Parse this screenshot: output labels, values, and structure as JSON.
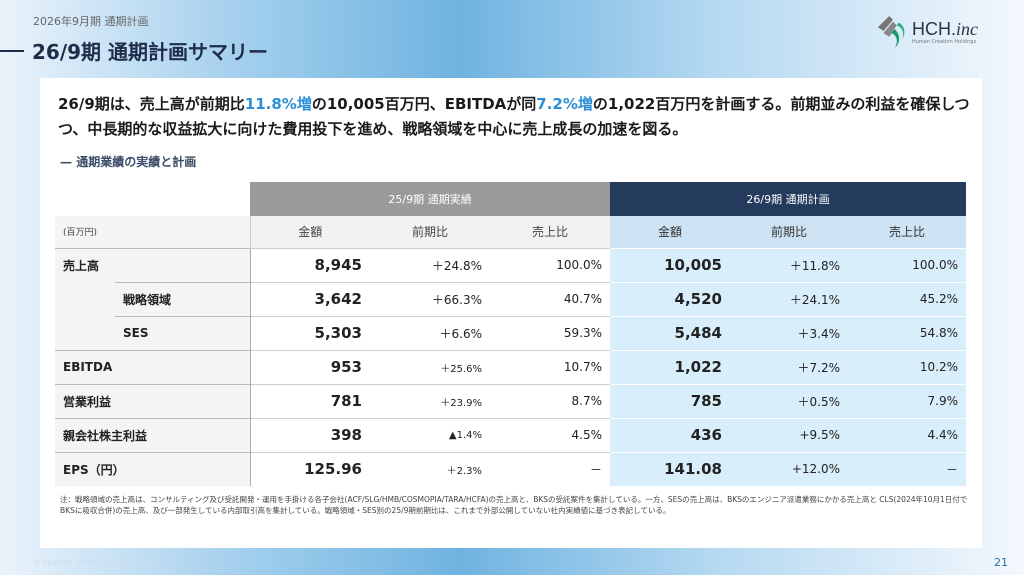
{
  "header": {
    "subtitle": "2026年9月期 通期計画",
    "title": "26/9期 通期計画サマリー",
    "logo_text": "HCH.",
    "logo_suffix": "inc",
    "logo_sub": "Human Creation Holdings"
  },
  "lead": {
    "p1": "26/9期は、売上高が前期比",
    "h1": "11.8%増",
    "p2": "の10,005百万円、EBITDAが同",
    "h2": "7.2%増",
    "p3": "の1,022百万円を計画する。前期並みの利益を確保しつつ、中長期的な収益拡大に向けた費用投下を進め、戦略領域を中心に売上成長の加速を図る。"
  },
  "section_title": "通期業績の実績と計画",
  "table": {
    "unit": "(百万円)",
    "group1": "25/9期 通期実績",
    "group2": "26/9期 通期計画",
    "cols": [
      "金額",
      "前期比",
      "売上比",
      "金額",
      "前期比",
      "売上比"
    ],
    "rows": [
      {
        "label": "売上高",
        "indent": false,
        "v": [
          "8,945",
          "＋24.8%",
          "100.0%",
          "10,005",
          "＋11.8%",
          "100.0%"
        ]
      },
      {
        "label": "戦略領域",
        "indent": true,
        "v": [
          "3,642",
          "＋66.3%",
          "40.7%",
          "4,520",
          "＋24.1%",
          "45.2%"
        ]
      },
      {
        "label": "SES",
        "indent": true,
        "v": [
          "5,303",
          "＋6.6%",
          "59.3%",
          "5,484",
          "＋3.4%",
          "54.8%"
        ]
      },
      {
        "label": "EBITDA",
        "indent": false,
        "v": [
          "953",
          "＋25.6%",
          "10.7%",
          "1,022",
          "＋7.2%",
          "10.2%"
        ]
      },
      {
        "label": "営業利益",
        "indent": false,
        "v": [
          "781",
          "＋23.9%",
          "8.7%",
          "785",
          "＋0.5%",
          "7.9%"
        ]
      },
      {
        "label": "親会社株主利益",
        "indent": false,
        "v": [
          "398",
          "▲1.4%",
          "4.5%",
          "436",
          "+9.5%",
          "4.4%"
        ]
      },
      {
        "label": "EPS（円）",
        "indent": false,
        "v": [
          "125.96",
          "＋2.3%",
          "－",
          "141.08",
          "+12.0%",
          "－"
        ]
      }
    ]
  },
  "note": "注：戦略領域の売上高は、コンサルティング及び受託開発・運用を手掛ける各子会社(ACF/SLG/HMB/COSMOPIA/TARA/HCFA)の売上高と、BKSの受託案件を集計している。一方、SESの売上高は、BKSのエンジニア派遣業務にかかる売上高と CLS(2024年10月1日付でBKSに吸収合併)の売上高、及び一部発生している内部取引高を集計している。戦略領域・SES別の25/9期前期比は、これまで外部公開していない社内実績値に基づき表記している。",
  "footer": {
    "copyright": "© Human Creation Holdings Inc.",
    "page": "21"
  },
  "colors": {
    "accent": "#2a8fd6",
    "navy": "#243b5e",
    "plan_bg": "#d9eefb"
  }
}
